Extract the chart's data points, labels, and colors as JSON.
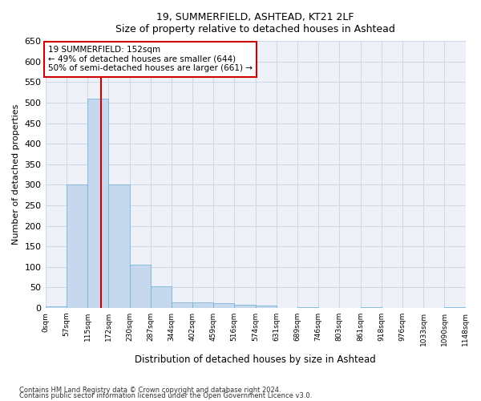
{
  "title1": "19, SUMMERFIELD, ASHTEAD, KT21 2LF",
  "title2": "Size of property relative to detached houses in Ashtead",
  "xlabel": "Distribution of detached houses by size in Ashtead",
  "ylabel": "Number of detached properties",
  "footer1": "Contains HM Land Registry data © Crown copyright and database right 2024.",
  "footer2": "Contains public sector information licensed under the Open Government Licence v3.0.",
  "bar_edges": [
    0,
    57,
    115,
    172,
    230,
    287,
    344,
    402,
    459,
    516,
    574,
    631,
    689,
    746,
    803,
    861,
    918,
    976,
    1033,
    1090,
    1148
  ],
  "bar_heights": [
    3,
    300,
    510,
    300,
    106,
    53,
    13,
    13,
    12,
    8,
    5,
    0,
    2,
    0,
    0,
    2,
    0,
    0,
    0,
    2
  ],
  "bar_color": "#c5d8ed",
  "bar_edge_color": "#6aaed6",
  "grid_color": "#d0d8e8",
  "background_color": "#eef2f8",
  "red_line_x": 152,
  "annotation_text": "19 SUMMERFIELD: 152sqm\n← 49% of detached houses are smaller (644)\n50% of semi-detached houses are larger (661) →",
  "annotation_box_color": "#ffffff",
  "annotation_border_color": "#cc0000",
  "ylim": [
    0,
    650
  ],
  "yticks": [
    0,
    50,
    100,
    150,
    200,
    250,
    300,
    350,
    400,
    450,
    500,
    550,
    600,
    650
  ]
}
